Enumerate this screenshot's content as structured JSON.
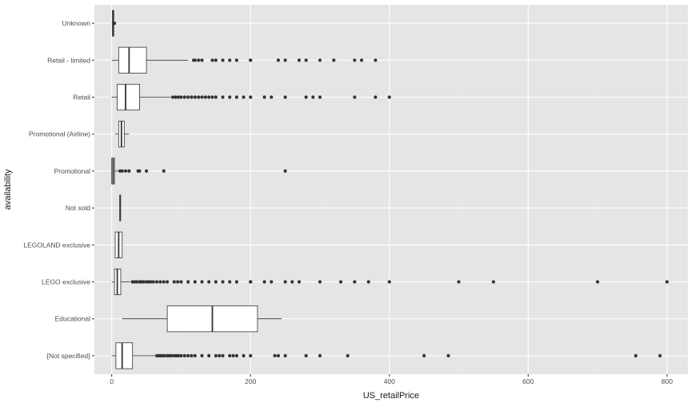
{
  "chart_data": {
    "type": "boxplot",
    "orientation": "horizontal",
    "xlabel": "US_retailPrice",
    "ylabel": "availability",
    "xlim": [
      -25,
      830
    ],
    "x_ticks": [
      0,
      200,
      400,
      600,
      800
    ],
    "grid": true,
    "colors": {
      "panel": "#e5e5e5",
      "grid_major": "#ffffff",
      "box_fill": "#ffffff",
      "line": "#333333"
    },
    "categories": [
      {
        "name": "Unknown",
        "lower_whisker": 0,
        "q1": 1,
        "median": 2,
        "q3": 3,
        "upper_whisker": 3,
        "outliers": [
          4
        ]
      },
      {
        "name": "Retail - limited",
        "lower_whisker": 0,
        "q1": 10,
        "median": 25,
        "q3": 50,
        "upper_whisker": 110,
        "outliers": [
          118,
          120,
          125,
          130,
          145,
          150,
          160,
          170,
          180,
          200,
          200,
          240,
          250,
          270,
          280,
          300,
          320,
          350,
          360,
          380
        ]
      },
      {
        "name": "Retail",
        "lower_whisker": 0,
        "q1": 8,
        "median": 20,
        "q3": 40,
        "upper_whisker": 85,
        "outliers": [
          88,
          92,
          96,
          100,
          105,
          110,
          115,
          120,
          125,
          130,
          135,
          140,
          145,
          150,
          160,
          170,
          180,
          190,
          200,
          220,
          230,
          250,
          280,
          290,
          300,
          350,
          380,
          400
        ]
      },
      {
        "name": "Promotional (Airline)",
        "lower_whisker": 5,
        "q1": 10,
        "median": 14,
        "q3": 18,
        "upper_whisker": 25,
        "outliers": []
      },
      {
        "name": "Promotional",
        "lower_whisker": 0,
        "q1": 0,
        "median": 2,
        "q3": 4,
        "upper_whisker": 10,
        "outliers": [
          12,
          15,
          20,
          25,
          38,
          40,
          50,
          75,
          250
        ]
      },
      {
        "name": "Not sold",
        "lower_whisker": 12,
        "q1": 12,
        "median": 12,
        "q3": 12,
        "upper_whisker": 12,
        "outliers": []
      },
      {
        "name": "LEGOLAND exclusive",
        "lower_whisker": 5,
        "q1": 5,
        "median": 10,
        "q3": 15,
        "upper_whisker": 15,
        "outliers": []
      },
      {
        "name": "LEGO exclusive",
        "lower_whisker": 0,
        "q1": 4,
        "median": 8,
        "q3": 13,
        "upper_whisker": 27,
        "outliers": [
          30,
          33,
          36,
          40,
          43,
          46,
          50,
          53,
          56,
          60,
          65,
          70,
          75,
          80,
          90,
          95,
          100,
          110,
          120,
          130,
          140,
          150,
          160,
          170,
          180,
          200,
          200,
          220,
          230,
          250,
          260,
          270,
          300,
          330,
          350,
          370,
          400,
          500,
          550,
          700,
          800
        ]
      },
      {
        "name": "Educational",
        "lower_whisker": 15,
        "q1": 80,
        "median": 145,
        "q3": 210,
        "upper_whisker": 245,
        "outliers": []
      },
      {
        "name": "{Not specified}",
        "lower_whisker": 0,
        "q1": 6,
        "median": 15,
        "q3": 30,
        "upper_whisker": 63,
        "outliers": [
          65,
          68,
          70,
          73,
          76,
          80,
          83,
          86,
          90,
          93,
          96,
          100,
          105,
          110,
          115,
          120,
          130,
          140,
          150,
          155,
          160,
          170,
          175,
          180,
          190,
          200,
          235,
          240,
          250,
          280,
          300,
          340,
          450,
          485,
          755,
          790
        ]
      }
    ]
  }
}
